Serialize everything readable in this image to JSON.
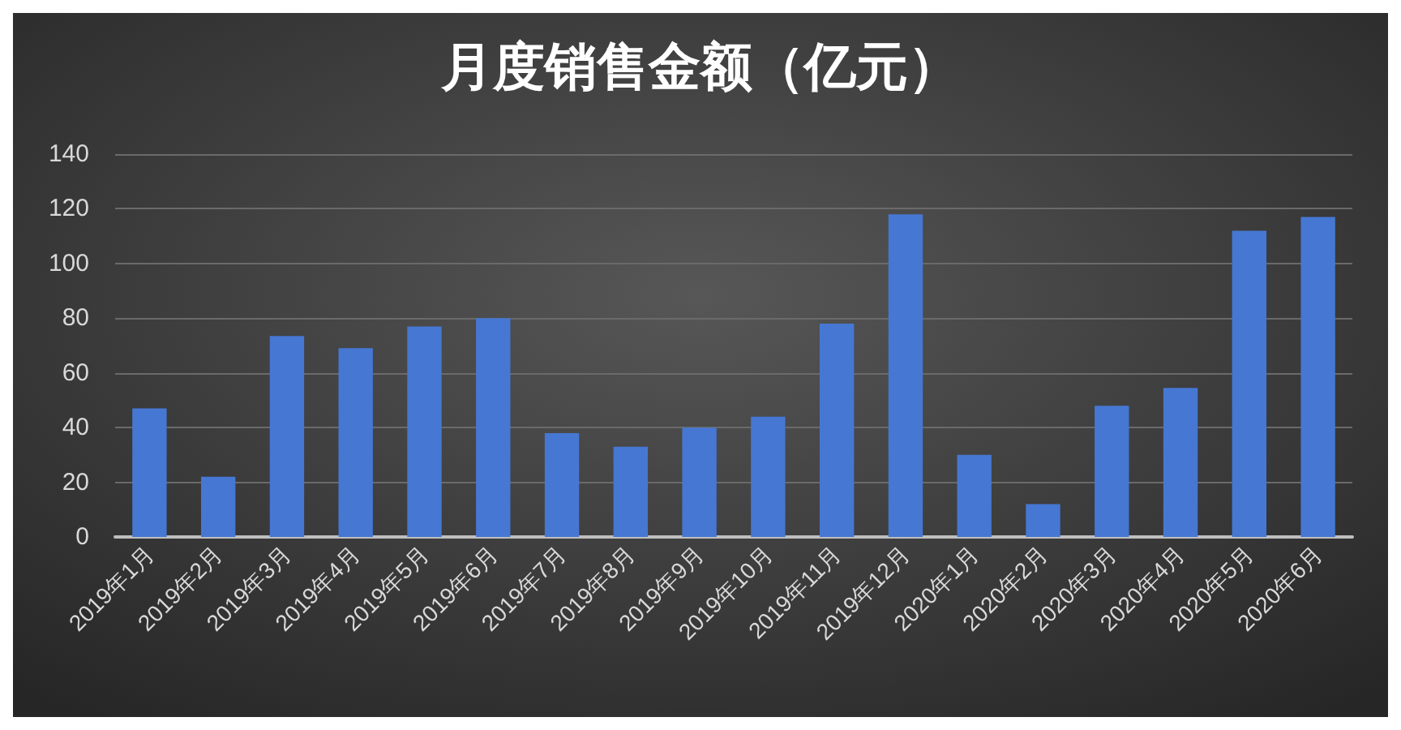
{
  "chart_data": {
    "type": "bar",
    "title": "月度销售金额（亿元）",
    "categories": [
      "2019年1月",
      "2019年2月",
      "2019年3月",
      "2019年4月",
      "2019年5月",
      "2019年6月",
      "2019年7月",
      "2019年8月",
      "2019年9月",
      "2019年10月",
      "2019年11月",
      "2019年12月",
      "2020年1月",
      "2020年2月",
      "2020年3月",
      "2020年4月",
      "2020年5月",
      "2020年6月"
    ],
    "values": [
      47,
      22,
      73.5,
      69,
      77,
      80,
      38,
      33,
      40,
      44,
      78,
      118,
      30,
      12,
      48,
      54.5,
      112,
      117
    ],
    "color": "#4677d3",
    "ylim": [
      0,
      140
    ],
    "yticks": [
      0,
      20,
      40,
      60,
      80,
      100,
      120,
      140
    ],
    "grid": "y"
  }
}
